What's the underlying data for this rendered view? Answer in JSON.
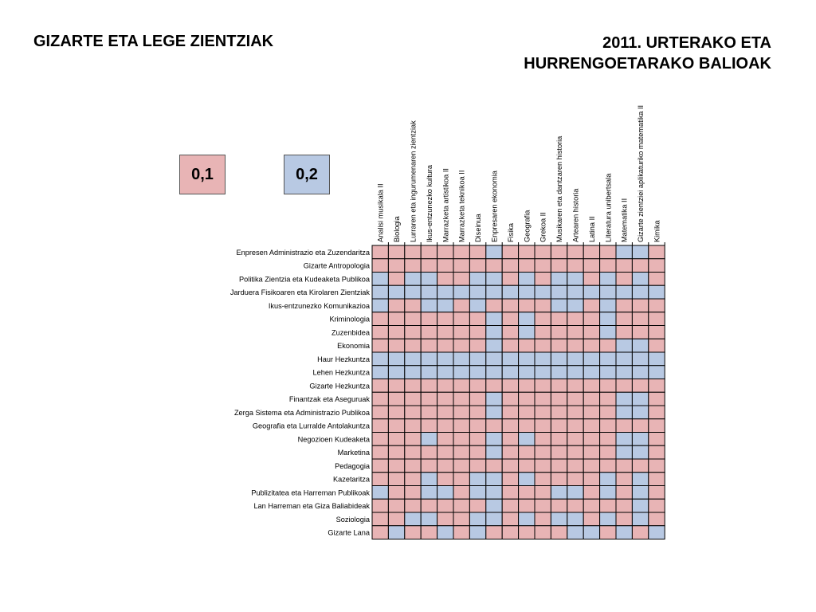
{
  "header": {
    "title_left": "GIZARTE ETA LEGE ZIENTZIAK",
    "title_right_line1": "2011. URTERAKO ETA",
    "title_right_line2": "HURRENGOETARAKO BALIOAK"
  },
  "colors": {
    "low": "#e8b4b5",
    "high": "#b8c9e3",
    "border": "#000000"
  },
  "chart_data": {
    "type": "heatmap",
    "legend": [
      {
        "label": "0,1",
        "value": 0.1,
        "color": "#e8b4b5"
      },
      {
        "label": "0,2",
        "value": 0.2,
        "color": "#b8c9e3"
      }
    ],
    "columns": [
      "Analisi musikala II",
      "Biologia",
      "Lurraren eta ingurumenaren zientziak",
      "Ikus-entzunezko kultura",
      "Marrazketa artistikoa II",
      "Marrazketa teknikoa II",
      "Diseinua",
      "Enpresaren ekonomia",
      "Fisika",
      "Geografia",
      "Grekoa II",
      "Musikaren eta dantzaren historia",
      "Artearen historia",
      "Latina II",
      "Literatura unibertsala",
      "Matematika II",
      "Gizarte zientziei aplikaturiko matematika II",
      "Kimika"
    ],
    "rows": [
      {
        "label": "Enpresen Administrazio eta Zuzendaritza",
        "values": [
          0.1,
          0.1,
          0.1,
          0.1,
          0.1,
          0.1,
          0.1,
          0.2,
          0.1,
          0.1,
          0.1,
          0.1,
          0.1,
          0.1,
          0.1,
          0.2,
          0.2,
          0.1
        ]
      },
      {
        "label": "Gizarte Antropologia",
        "values": [
          0.1,
          0.1,
          0.1,
          0.1,
          0.1,
          0.1,
          0.1,
          0.1,
          0.1,
          0.1,
          0.1,
          0.1,
          0.1,
          0.1,
          0.1,
          0.1,
          0.1,
          0.1
        ]
      },
      {
        "label": "Politika Zientzia eta Kudeaketa Publikoa",
        "values": [
          0.2,
          0.1,
          0.2,
          0.2,
          0.1,
          0.1,
          0.2,
          0.2,
          0.1,
          0.2,
          0.1,
          0.2,
          0.2,
          0.1,
          0.2,
          0.1,
          0.2,
          0.1
        ]
      },
      {
        "label": "Jarduera Fisikoaren eta Kirolaren Zientziak",
        "values": [
          0.2,
          0.2,
          0.2,
          0.2,
          0.2,
          0.2,
          0.2,
          0.2,
          0.2,
          0.2,
          0.2,
          0.2,
          0.2,
          0.2,
          0.2,
          0.2,
          0.2,
          0.2
        ]
      },
      {
        "label": "Ikus-entzunezko Komunikazioa",
        "values": [
          0.2,
          0.1,
          0.1,
          0.2,
          0.2,
          0.1,
          0.2,
          0.1,
          0.1,
          0.1,
          0.1,
          0.2,
          0.2,
          0.1,
          0.2,
          0.1,
          0.1,
          0.1
        ]
      },
      {
        "label": "Kriminologia",
        "values": [
          0.1,
          0.1,
          0.1,
          0.1,
          0.1,
          0.1,
          0.1,
          0.2,
          0.1,
          0.2,
          0.1,
          0.1,
          0.1,
          0.1,
          0.2,
          0.1,
          0.1,
          0.1
        ]
      },
      {
        "label": "Zuzenbidea",
        "values": [
          0.1,
          0.1,
          0.1,
          0.1,
          0.1,
          0.1,
          0.1,
          0.2,
          0.1,
          0.2,
          0.1,
          0.1,
          0.1,
          0.1,
          0.2,
          0.1,
          0.1,
          0.1
        ]
      },
      {
        "label": "Ekonomia",
        "values": [
          0.1,
          0.1,
          0.1,
          0.1,
          0.1,
          0.1,
          0.1,
          0.2,
          0.1,
          0.1,
          0.1,
          0.1,
          0.1,
          0.1,
          0.1,
          0.2,
          0.2,
          0.1
        ]
      },
      {
        "label": "Haur Hezkuntza",
        "values": [
          0.2,
          0.2,
          0.2,
          0.2,
          0.2,
          0.2,
          0.2,
          0.2,
          0.2,
          0.2,
          0.2,
          0.2,
          0.2,
          0.2,
          0.2,
          0.2,
          0.2,
          0.2
        ]
      },
      {
        "label": "Lehen Hezkuntza",
        "values": [
          0.2,
          0.2,
          0.2,
          0.2,
          0.2,
          0.2,
          0.2,
          0.2,
          0.2,
          0.2,
          0.2,
          0.2,
          0.2,
          0.2,
          0.2,
          0.2,
          0.2,
          0.2
        ]
      },
      {
        "label": "Gizarte Hezkuntza",
        "values": [
          0.1,
          0.1,
          0.1,
          0.1,
          0.1,
          0.1,
          0.1,
          0.1,
          0.1,
          0.1,
          0.1,
          0.1,
          0.1,
          0.1,
          0.1,
          0.1,
          0.1,
          0.1
        ]
      },
      {
        "label": "Finantzak eta Aseguruak",
        "values": [
          0.1,
          0.1,
          0.1,
          0.1,
          0.1,
          0.1,
          0.1,
          0.2,
          0.1,
          0.1,
          0.1,
          0.1,
          0.1,
          0.1,
          0.1,
          0.2,
          0.2,
          0.1
        ]
      },
      {
        "label": "Zerga Sistema eta Administrazio Publikoa",
        "values": [
          0.1,
          0.1,
          0.1,
          0.1,
          0.1,
          0.1,
          0.1,
          0.2,
          0.1,
          0.1,
          0.1,
          0.1,
          0.1,
          0.1,
          0.1,
          0.2,
          0.2,
          0.1
        ]
      },
      {
        "label": "Geografia eta Lurralde Antolakuntza",
        "values": [
          0.1,
          0.1,
          0.1,
          0.1,
          0.1,
          0.1,
          0.1,
          0.1,
          0.1,
          0.1,
          0.1,
          0.1,
          0.1,
          0.1,
          0.1,
          0.1,
          0.1,
          0.1
        ]
      },
      {
        "label": "Negozioen Kudeaketa",
        "values": [
          0.1,
          0.1,
          0.1,
          0.2,
          0.1,
          0.1,
          0.1,
          0.2,
          0.1,
          0.2,
          0.1,
          0.1,
          0.1,
          0.1,
          0.1,
          0.2,
          0.2,
          0.1
        ]
      },
      {
        "label": "Marketina",
        "values": [
          0.1,
          0.1,
          0.1,
          0.1,
          0.1,
          0.1,
          0.1,
          0.2,
          0.1,
          0.1,
          0.1,
          0.1,
          0.1,
          0.1,
          0.1,
          0.2,
          0.2,
          0.1
        ]
      },
      {
        "label": "Pedagogia",
        "values": [
          0.1,
          0.1,
          0.1,
          0.1,
          0.1,
          0.1,
          0.1,
          0.1,
          0.1,
          0.1,
          0.1,
          0.1,
          0.1,
          0.1,
          0.1,
          0.1,
          0.1,
          0.1
        ]
      },
      {
        "label": "Kazetaritza",
        "values": [
          0.1,
          0.1,
          0.1,
          0.2,
          0.1,
          0.1,
          0.2,
          0.2,
          0.1,
          0.2,
          0.1,
          0.1,
          0.1,
          0.1,
          0.2,
          0.1,
          0.2,
          0.1
        ]
      },
      {
        "label": "Publizitatea eta Harreman Publikoak",
        "values": [
          0.2,
          0.1,
          0.1,
          0.2,
          0.2,
          0.1,
          0.2,
          0.2,
          0.1,
          0.1,
          0.1,
          0.2,
          0.2,
          0.1,
          0.2,
          0.1,
          0.2,
          0.1
        ]
      },
      {
        "label": "Lan Harreman eta Giza Baliabideak",
        "values": [
          0.1,
          0.1,
          0.1,
          0.1,
          0.1,
          0.1,
          0.1,
          0.2,
          0.1,
          0.1,
          0.1,
          0.1,
          0.1,
          0.1,
          0.1,
          0.1,
          0.2,
          0.1
        ]
      },
      {
        "label": "Soziologia",
        "values": [
          0.1,
          0.1,
          0.2,
          0.2,
          0.1,
          0.1,
          0.2,
          0.2,
          0.1,
          0.2,
          0.1,
          0.2,
          0.2,
          0.1,
          0.2,
          0.1,
          0.2,
          0.1
        ]
      },
      {
        "label": "Gizarte Lana",
        "values": [
          0.1,
          0.2,
          0.1,
          0.1,
          0.2,
          0.1,
          0.2,
          0.1,
          0.1,
          0.1,
          0.1,
          0.1,
          0.2,
          0.2,
          0.1,
          0.2,
          0.1,
          0.2
        ]
      }
    ]
  }
}
